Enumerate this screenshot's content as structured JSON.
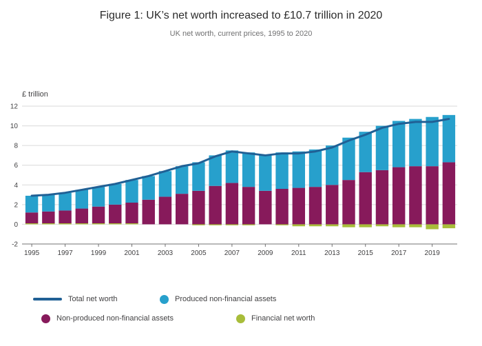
{
  "chart_data": {
    "type": "bar",
    "stacked": true,
    "title": "Figure 1: UK’s net worth increased to £10.7 trillion in 2020",
    "subtitle": "UK net worth, current prices, 1995 to 2020",
    "unit_label": "£ trillion",
    "x": [
      1995,
      1996,
      1997,
      1998,
      1999,
      2000,
      2001,
      2002,
      2003,
      2004,
      2005,
      2006,
      2007,
      2008,
      2009,
      2010,
      2011,
      2012,
      2013,
      2014,
      2015,
      2016,
      2017,
      2018,
      2019,
      2020
    ],
    "x_tick_years": [
      1995,
      1997,
      1999,
      2001,
      2003,
      2005,
      2007,
      2009,
      2011,
      2013,
      2015,
      2017,
      2019
    ],
    "ylim": [
      -2,
      12
    ],
    "yticks": [
      -2,
      0,
      2,
      4,
      6,
      8,
      10,
      12
    ],
    "grid": "horizontal",
    "legend_position": "bottom",
    "series": [
      {
        "name": "Non-produced non-financial assets",
        "color": "#871a5b",
        "values": [
          1.1,
          1.2,
          1.3,
          1.5,
          1.7,
          1.9,
          2.1,
          2.5,
          2.8,
          3.1,
          3.4,
          3.9,
          4.2,
          3.8,
          3.4,
          3.6,
          3.7,
          3.8,
          4.0,
          4.5,
          5.3,
          5.5,
          5.8,
          5.9,
          5.9,
          6.3
        ]
      },
      {
        "name": "Produced non-financial assets",
        "color": "#27a0cc",
        "values": [
          1.7,
          1.7,
          1.8,
          1.9,
          2.0,
          2.1,
          2.3,
          2.4,
          2.6,
          2.8,
          2.9,
          3.1,
          3.3,
          3.5,
          3.6,
          3.7,
          3.7,
          3.8,
          4.0,
          4.3,
          4.1,
          4.5,
          4.7,
          4.8,
          5.0,
          4.8
        ]
      },
      {
        "name": "Financial net worth",
        "color": "#a8bd3a",
        "values": [
          0.1,
          0.1,
          0.1,
          0.1,
          0.1,
          0.1,
          0.1,
          0.0,
          0.0,
          0.0,
          -0.1,
          -0.1,
          -0.1,
          -0.1,
          0.0,
          -0.1,
          -0.2,
          -0.2,
          -0.2,
          -0.3,
          -0.3,
          -0.2,
          -0.3,
          -0.3,
          -0.5,
          -0.4
        ]
      }
    ],
    "line_series": {
      "name": "Total net worth",
      "color": "#206095",
      "values": [
        2.9,
        3.0,
        3.2,
        3.5,
        3.8,
        4.1,
        4.5,
        4.9,
        5.4,
        5.9,
        6.2,
        6.9,
        7.4,
        7.2,
        7.0,
        7.2,
        7.2,
        7.4,
        7.8,
        8.5,
        9.1,
        9.8,
        10.2,
        10.4,
        10.4,
        10.7
      ]
    }
  },
  "colors": {
    "axis_text": "#414042",
    "gridline": "#d9d9d9",
    "axis_line": "#707071",
    "title": "#2b2b2b",
    "subtitle": "#707071"
  }
}
